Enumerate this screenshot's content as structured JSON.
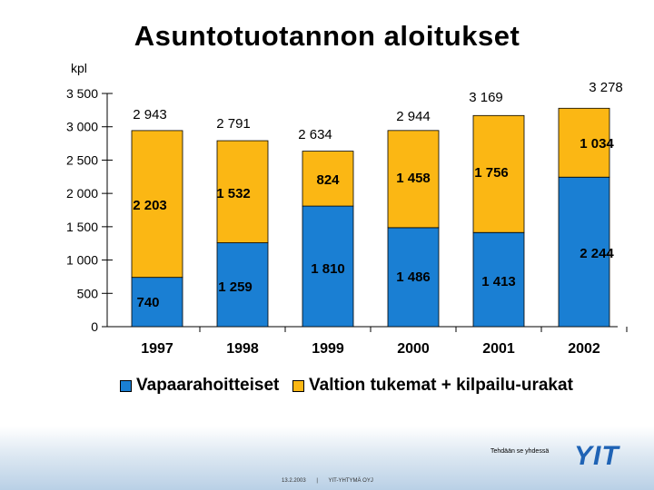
{
  "title": "Asuntotuotannon aloitukset",
  "unit_label": "kpl",
  "colors": {
    "vapaarahoitteiset": "#1a7fd3",
    "valtion": "#fbb714",
    "logo": "#1f63b5"
  },
  "legend": {
    "series1": "Vapaarahoitteiset",
    "series2": "Valtion tukemat + kilpailu-urakat"
  },
  "chart_data": {
    "type": "bar",
    "stacked": true,
    "title": "Asuntotuotannon aloitukset",
    "ylabel": "kpl",
    "ylim": [
      0,
      3500
    ],
    "yticks": [
      "0",
      "500",
      "1 000",
      "1 500",
      "2 000",
      "2 500",
      "3 000",
      "3 500"
    ],
    "categories": [
      "1997",
      "1998",
      "1999",
      "2000",
      "2001",
      "2002"
    ],
    "series": [
      {
        "name": "Vapaarahoitteiset",
        "values": [
          740,
          1259,
          1810,
          1486,
          1413,
          2244
        ],
        "labels": [
          "740",
          "1 259",
          "1 810",
          "1 486",
          "1 413",
          "2 244"
        ]
      },
      {
        "name": "Valtion tukemat + kilpailu-urakat",
        "values": [
          2203,
          1532,
          824,
          1458,
          1756,
          1034
        ],
        "labels": [
          "2 203",
          "1 532",
          "824",
          "1 458",
          "1 756",
          "1 034"
        ]
      }
    ],
    "totals": [
      2943,
      2791,
      2634,
      2944,
      3169,
      3278
    ],
    "total_labels": [
      "2 943",
      "2 791",
      "2 634",
      "2 944",
      "3 169",
      "3 278"
    ],
    "legend_position": "bottom",
    "grid": false
  },
  "footer": {
    "slogan": "Tehdään se yhdessä",
    "logo": "YIT",
    "date": "13.2.2003",
    "separator": "|",
    "company": "YIT-YHTYMÄ OYJ"
  }
}
